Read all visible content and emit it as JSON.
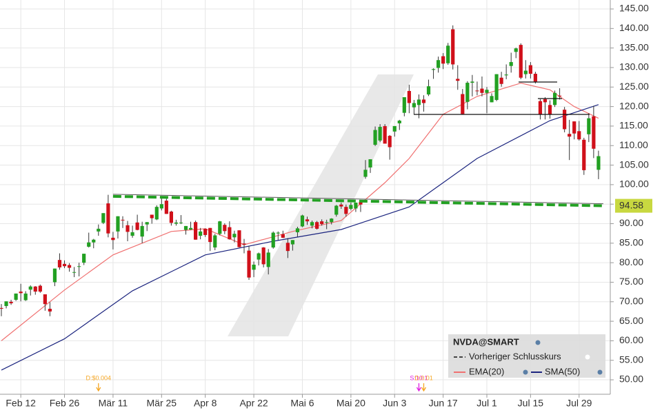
{
  "chart_data": {
    "type": "candlestick",
    "series": [
      {
        "name": "NVDA@SMART",
        "up_color": "#22a022",
        "down_color": "#d0101a",
        "open": [
          68.4,
          68.9,
          70.0,
          70.5,
          72.6,
          70.4,
          73.1,
          73.9,
          74.1,
          71.9,
          68.2,
          75.0,
          80.7,
          79.7,
          79.4,
          77.6,
          79.0,
          80.0,
          84.1,
          85.2,
          88.0,
          90.2,
          95.2,
          86.4,
          88.0,
          91.0,
          89.6,
          86.9,
          90.3,
          86.7,
          89.8,
          92.3,
          91.1,
          93.9,
          95.9,
          93.1,
          90.0,
          90.3,
          88.4,
          88.5,
          90.4,
          86.9,
          88.7,
          88.9,
          83.9,
          87.4,
          89.7,
          89.1,
          86.5,
          88.3,
          84.9,
          83.1,
          78.2,
          80.8,
          83.9,
          78.9,
          83.9,
          87.5,
          87.3,
          85.1,
          84.7,
          87.8,
          89.3,
          91.1,
          89.5,
          90.4,
          90.6,
          90.4,
          90.4,
          92.3,
          94.9,
          94.3,
          93.8,
          93.9,
          95.5,
          102.0,
          104.4,
          110.2,
          111.3,
          115.0,
          112.5,
          113.6,
          115.7,
          118.4,
          124.0,
          119.8,
          120.4,
          121.8,
          123.1,
          129.4,
          129.9,
          132.9,
          131.1,
          139.8,
          127.1,
          123.2,
          121.2,
          126.1,
          124.1,
          124.6,
          123.5,
          121.1,
          121.7,
          127.4,
          128.0,
          130.4,
          134.0,
          135.8,
          128.3,
          130.6,
          128.4,
          121.4,
          121.9,
          120.4,
          120.4,
          122.8,
          119.2,
          113.0,
          116.2,
          113.7,
          111.5,
          112.9,
          117.5,
          103.8
        ],
        "high": [
          69.4,
          70.1,
          70.5,
          72.1,
          74.6,
          72.7,
          74.2,
          74.0,
          74.4,
          71.9,
          69.9,
          78.5,
          82.4,
          80.6,
          79.9,
          78.9,
          80.0,
          82.3,
          87.7,
          86.1,
          89.8,
          92.7,
          97.4,
          87.9,
          91.9,
          91.9,
          90.7,
          89.5,
          92.3,
          90.5,
          90.4,
          92.3,
          94.7,
          96.8,
          96.4,
          93.3,
          91.0,
          92.2,
          89.4,
          90.5,
          90.8,
          88.9,
          88.8,
          88.9,
          87.4,
          90.7,
          90.1,
          90.6,
          88.2,
          88.3,
          86.1,
          84.3,
          80.3,
          82.6,
          84.0,
          83.5,
          88.0,
          88.0,
          88.2,
          86.3,
          85.8,
          89.2,
          92.3,
          91.8,
          90.8,
          90.7,
          91.1,
          91.0,
          91.4,
          94.8,
          95.4,
          94.9,
          95.4,
          95.4,
          96.0,
          106.3,
          106.5,
          114.9,
          115.5,
          115.5,
          112.7,
          115.0,
          116.6,
          122.4,
          125.6,
          121.7,
          123.1,
          122.9,
          126.9,
          129.8,
          132.8,
          133.7,
          136.3,
          140.8,
          130.6,
          124.5,
          126.5,
          128.1,
          126.4,
          127.7,
          125.0,
          123.4,
          128.3,
          128.9,
          130.8,
          133.8,
          135.1,
          136.2,
          131.9,
          131.4,
          128.9,
          121.9,
          122.4,
          121.6,
          124.1,
          124.7,
          119.9,
          116.6,
          116.2,
          116.3,
          112.0,
          118.3,
          120.2,
          108.7
        ],
        "low": [
          66.3,
          68.3,
          69.2,
          70.2,
          70.1,
          70.2,
          71.6,
          71.8,
          72.3,
          67.7,
          66.3,
          74.0,
          78.2,
          78.6,
          77.7,
          76.3,
          76.5,
          79.4,
          83.9,
          83.7,
          86.9,
          89.9,
          86.5,
          83.4,
          86.2,
          88.9,
          85.5,
          86.4,
          88.3,
          85.0,
          88.1,
          90.0,
          90.9,
          93.4,
          92.5,
          89.5,
          89.5,
          89.9,
          87.2,
          88.4,
          85.9,
          86.0,
          86.6,
          83.0,
          83.2,
          87.0,
          87.3,
          85.9,
          85.2,
          83.9,
          82.4,
          75.6,
          76.3,
          79.3,
          78.8,
          77.0,
          83.6,
          85.8,
          86.3,
          81.2,
          83.1,
          86.6,
          89.1,
          89.7,
          88.8,
          88.5,
          89.5,
          88.6,
          89.8,
          91.8,
          93.8,
          91.8,
          93.4,
          93.0,
          93.0,
          101.5,
          103.0,
          109.9,
          110.9,
          110.9,
          106.4,
          112.3,
          114.0,
          117.5,
          118.3,
          118.0,
          117.0,
          118.7,
          122.7,
          127.1,
          128.7,
          129.6,
          130.7,
          129.5,
          124.3,
          118.0,
          119.3,
          122.6,
          122.9,
          122.6,
          118.3,
          121.1,
          121.4,
          125.1,
          127.0,
          128.7,
          132.4,
          127.0,
          127.2,
          127.2,
          125.9,
          116.7,
          116.7,
          116.9,
          119.9,
          121.8,
          113.4,
          106.3,
          111.6,
          111.3,
          102.5,
          110.9,
          106.8,
          101.4
        ],
        "close": [
          68.2,
          70.1,
          69.6,
          72.1,
          72.2,
          72.1,
          73.9,
          72.6,
          72.6,
          69.4,
          67.5,
          78.5,
          78.8,
          79.1,
          78.7,
          77.6,
          79.1,
          82.3,
          85.2,
          85.9,
          88.7,
          92.7,
          87.5,
          85.8,
          91.9,
          90.9,
          87.9,
          87.8,
          88.4,
          89.4,
          90.4,
          91.4,
          94.3,
          95.0,
          92.5,
          90.2,
          90.3,
          90.3,
          89.4,
          88.9,
          85.9,
          88.0,
          87.1,
          85.3,
          87.0,
          90.6,
          88.1,
          86.0,
          87.4,
          84.0,
          84.6,
          76.2,
          79.5,
          82.4,
          79.6,
          82.6,
          87.7,
          87.7,
          86.4,
          83.0,
          85.8,
          88.8,
          92.1,
          90.6,
          90.4,
          88.7,
          89.9,
          90.4,
          91.3,
          94.6,
          94.4,
          92.5,
          94.8,
          95.4,
          94.9,
          103.8,
          106.5,
          114.0,
          114.8,
          110.5,
          109.6,
          115.0,
          116.4,
          122.4,
          120.9,
          120.9,
          121.8,
          120.9,
          125.2,
          129.6,
          131.9,
          131.0,
          135.6,
          130.8,
          126.6,
          118.1,
          126.1,
          126.4,
          124.0,
          123.5,
          124.3,
          122.7,
          128.3,
          125.8,
          128.2,
          131.4,
          134.9,
          127.4,
          129.2,
          128.4,
          126.4,
          118.0,
          121.1,
          117.9,
          123.5,
          122.6,
          114.2,
          112.3,
          113.1,
          111.6,
          103.7,
          117.0,
          109.2,
          107.3
        ]
      }
    ],
    "reference_line": {
      "name": "Vorheriger Schlusskurs",
      "color": "#444444"
    },
    "lines": [
      {
        "name": "EMA(20)",
        "color": "#f07070",
        "x": [
          0,
          13,
          23,
          35,
          42,
          50,
          60,
          70,
          79,
          84,
          91,
          98,
          107,
          113,
          118,
          123
        ],
        "values": [
          60,
          73,
          82,
          88,
          88.7,
          84.6,
          88,
          90.8,
          100.5,
          106.7,
          118,
          122.6,
          126,
          124.3,
          120,
          117
        ]
      },
      {
        "name": "SMA(50)",
        "color": "#1a237e",
        "x": [
          0,
          13,
          27,
          42,
          56,
          70,
          84,
          98,
          113,
          123
        ],
        "values": [
          52.5,
          60.5,
          72.8,
          82,
          85.5,
          88.5,
          94.3,
          106.7,
          116.4,
          120.5
        ]
      }
    ],
    "trendline": {
      "x": [
        23,
        124
      ],
      "values": [
        97.0,
        94.58
      ],
      "color": "#22a022"
    },
    "events": [
      {
        "x": 20,
        "label": "D:$0.004",
        "color": "#f5a623"
      },
      {
        "x": 86,
        "label": "S:10:1",
        "color": "#e020e0"
      },
      {
        "x": 87,
        "label": "D:0.01",
        "color": "#f5a623"
      }
    ],
    "ylim": [
      46.3,
      147.3
    ],
    "yticks": [
      {
        "value": 50,
        "label": "50.00"
      },
      {
        "value": 55,
        "label": "55.00"
      },
      {
        "value": 60,
        "label": "60.00"
      },
      {
        "value": 65,
        "label": "65.00"
      },
      {
        "value": 70,
        "label": "70.00"
      },
      {
        "value": 75,
        "label": "75.00"
      },
      {
        "value": 80,
        "label": "80.00"
      },
      {
        "value": 85,
        "label": "85.00"
      },
      {
        "value": 90,
        "label": "90.00"
      },
      {
        "value": 95,
        "label": "95.00"
      },
      {
        "value": 100,
        "label": "100.00"
      },
      {
        "value": 105,
        "label": "105.00"
      },
      {
        "value": 110,
        "label": "110.00"
      },
      {
        "value": 115,
        "label": "115.00"
      },
      {
        "value": 120,
        "label": "120.00"
      },
      {
        "value": 125,
        "label": "125.00"
      },
      {
        "value": 130,
        "label": "130.00"
      },
      {
        "value": 135,
        "label": "135.00"
      },
      {
        "value": 140,
        "label": "140.00"
      },
      {
        "value": 145,
        "label": "145.00"
      }
    ],
    "xticks": [
      {
        "value": 4,
        "label": "Feb 12"
      },
      {
        "value": 13,
        "label": "Feb 26"
      },
      {
        "value": 23,
        "label": "Mär 11"
      },
      {
        "value": 33,
        "label": "Mär 25"
      },
      {
        "value": 42,
        "label": "Apr 8"
      },
      {
        "value": 52,
        "label": "Apr 22"
      },
      {
        "value": 62,
        "label": "Mai 6"
      },
      {
        "value": 72,
        "label": "Mai 20"
      },
      {
        "value": 81,
        "label": "Jun 3"
      },
      {
        "value": 91,
        "label": "Jun 17"
      },
      {
        "value": 100,
        "label": "Jul 1"
      },
      {
        "value": 109,
        "label": "Jul 15"
      },
      {
        "value": 119,
        "label": "Jul 29"
      }
    ],
    "grid": true
  }
}
